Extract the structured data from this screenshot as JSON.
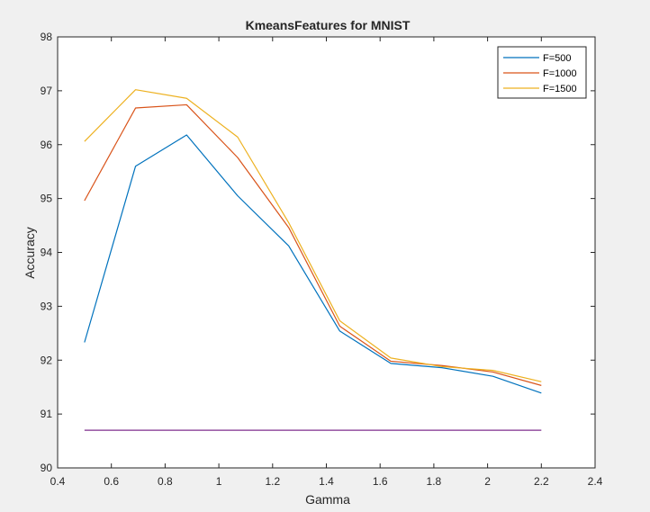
{
  "chart_data": {
    "type": "line",
    "title": "KmeansFeatures for MNIST",
    "xlabel": "Gamma",
    "ylabel": "Accuracy",
    "xlim": [
      0.4,
      2.4
    ],
    "ylim": [
      90,
      98
    ],
    "xticks": [
      0.4,
      0.6,
      0.8,
      1,
      1.2,
      1.4,
      1.6,
      1.8,
      2,
      2.2,
      2.4
    ],
    "xtick_labels": [
      "0.4",
      "0.6",
      "0.8",
      "1",
      "1.2",
      "1.4",
      "1.6",
      "1.8",
      "2",
      "2.2",
      "2.4"
    ],
    "yticks": [
      90,
      91,
      92,
      93,
      94,
      95,
      96,
      97,
      98
    ],
    "ytick_labels": [
      "90",
      "91",
      "92",
      "93",
      "94",
      "95",
      "96",
      "97",
      "98"
    ],
    "grid": false,
    "legend_position": "top-right",
    "x": [
      0.5,
      0.69,
      0.88,
      1.07,
      1.26,
      1.45,
      1.64,
      1.83,
      2.02,
      2.2
    ],
    "series": [
      {
        "name": "F=500",
        "color": "#0072bd",
        "values": [
          92.33,
          95.6,
          96.18,
          95.05,
          94.12,
          92.54,
          91.94,
          91.86,
          91.7,
          91.39
        ]
      },
      {
        "name": "F=1000",
        "color": "#d95319",
        "values": [
          94.96,
          96.68,
          96.74,
          95.76,
          94.46,
          92.63,
          91.98,
          91.9,
          91.78,
          91.53
        ]
      },
      {
        "name": "F=1500",
        "color": "#edb120",
        "values": [
          96.06,
          97.02,
          96.86,
          96.14,
          94.55,
          92.73,
          92.04,
          91.88,
          91.81,
          91.6
        ]
      },
      {
        "color": "#7e2f8e",
        "values": [
          90.7,
          90.7,
          90.7,
          90.7,
          90.7,
          90.7,
          90.7,
          90.7,
          90.7,
          90.7
        ]
      }
    ]
  }
}
